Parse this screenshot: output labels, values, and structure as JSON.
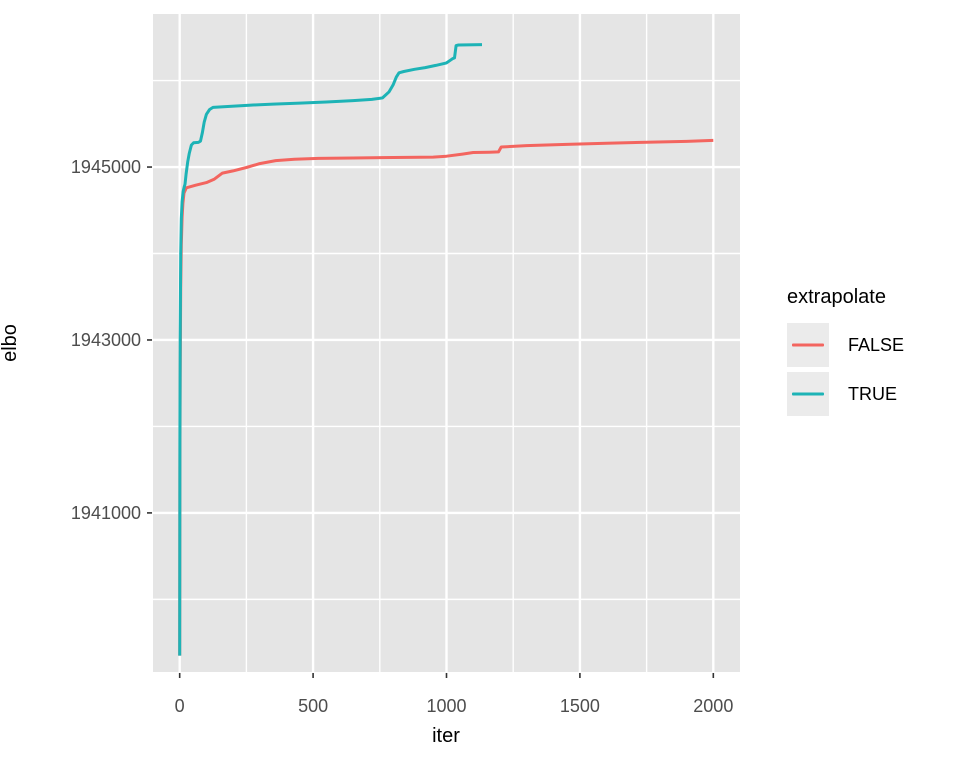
{
  "chart_data": {
    "type": "line",
    "title": "",
    "xlabel": "iter",
    "ylabel": "elbo",
    "xlim": [
      -100,
      2100
    ],
    "ylim": [
      1939160,
      1946770
    ],
    "grid": "on",
    "x_ticks": [
      0,
      500,
      1000,
      1500,
      2000
    ],
    "x_tick_labels": [
      "0",
      "500",
      "1000",
      "1500",
      "2000"
    ],
    "x_minor_ticks": [
      250,
      750,
      1250,
      1750
    ],
    "y_ticks": [
      1941000,
      1943000,
      1945000
    ],
    "y_tick_labels": [
      "1941000",
      "1943000",
      "1945000"
    ],
    "y_minor_ticks": [
      1940000,
      1942000,
      1944000,
      1946000
    ],
    "legend": {
      "title": "extrapolate",
      "position": "right"
    },
    "series": [
      {
        "name": "FALSE",
        "color": "#f3655f",
        "points": [
          [
            0,
            1939350
          ],
          [
            1,
            1941500
          ],
          [
            2,
            1942600
          ],
          [
            4,
            1943600
          ],
          [
            6,
            1944100
          ],
          [
            9,
            1944420
          ],
          [
            12,
            1944580
          ],
          [
            16,
            1944700
          ],
          [
            25,
            1944760
          ],
          [
            60,
            1944790
          ],
          [
            100,
            1944820
          ],
          [
            130,
            1944860
          ],
          [
            160,
            1944930
          ],
          [
            200,
            1944955
          ],
          [
            250,
            1944995
          ],
          [
            300,
            1945040
          ],
          [
            360,
            1945075
          ],
          [
            430,
            1945090
          ],
          [
            520,
            1945100
          ],
          [
            650,
            1945105
          ],
          [
            800,
            1945110
          ],
          [
            950,
            1945115
          ],
          [
            1000,
            1945125
          ],
          [
            1060,
            1945150
          ],
          [
            1100,
            1945168
          ],
          [
            1160,
            1945172
          ],
          [
            1195,
            1945175
          ],
          [
            1205,
            1945232
          ],
          [
            1300,
            1945248
          ],
          [
            1450,
            1945262
          ],
          [
            1600,
            1945275
          ],
          [
            1750,
            1945287
          ],
          [
            1900,
            1945297
          ],
          [
            2000,
            1945308
          ]
        ]
      },
      {
        "name": "TRUE",
        "color": "#1db3b6",
        "points": [
          [
            0,
            1939350
          ],
          [
            1,
            1941800
          ],
          [
            2,
            1943000
          ],
          [
            4,
            1944000
          ],
          [
            6,
            1944400
          ],
          [
            9,
            1944600
          ],
          [
            13,
            1944720
          ],
          [
            17,
            1944770
          ],
          [
            20,
            1944800
          ],
          [
            24,
            1944920
          ],
          [
            30,
            1945060
          ],
          [
            36,
            1945160
          ],
          [
            44,
            1945255
          ],
          [
            52,
            1945280
          ],
          [
            70,
            1945285
          ],
          [
            78,
            1945300
          ],
          [
            85,
            1945400
          ],
          [
            92,
            1945520
          ],
          [
            100,
            1945610
          ],
          [
            112,
            1945665
          ],
          [
            125,
            1945690
          ],
          [
            180,
            1945700
          ],
          [
            260,
            1945715
          ],
          [
            350,
            1945728
          ],
          [
            450,
            1945740
          ],
          [
            550,
            1945752
          ],
          [
            650,
            1945768
          ],
          [
            720,
            1945782
          ],
          [
            760,
            1945800
          ],
          [
            785,
            1945870
          ],
          [
            800,
            1945950
          ],
          [
            812,
            1946040
          ],
          [
            822,
            1946090
          ],
          [
            840,
            1946105
          ],
          [
            880,
            1946130
          ],
          [
            920,
            1946150
          ],
          [
            960,
            1946175
          ],
          [
            1000,
            1946205
          ],
          [
            1012,
            1946230
          ],
          [
            1022,
            1946252
          ],
          [
            1030,
            1946262
          ],
          [
            1036,
            1946405
          ],
          [
            1045,
            1946412
          ],
          [
            1133,
            1946416
          ]
        ]
      }
    ],
    "style": {
      "panel_bg": "#e5e5e5",
      "grid_color": "#ffffff",
      "tick_color": "#333333",
      "axis_text_color": "#4d4d4d",
      "title_color": "#000000",
      "legend_key_bg": "#ebebeb",
      "line_width": 3
    }
  }
}
